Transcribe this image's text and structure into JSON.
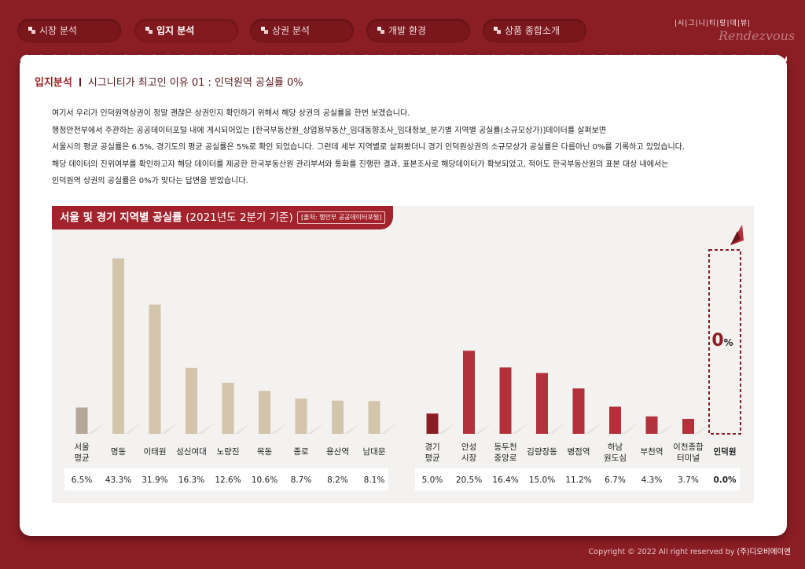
{
  "nav": {
    "tabs": [
      {
        "label": "시장 분석",
        "active": false
      },
      {
        "label": "입지 분석",
        "active": true
      },
      {
        "label": "상권 분석",
        "active": false
      },
      {
        "label": "개발 환경",
        "active": false
      },
      {
        "label": "상품 종합소개",
        "active": false
      }
    ]
  },
  "brand": {
    "name": "|시|그|니|티|랑|데|뷰|",
    "script": "Rendezvous"
  },
  "heading": {
    "section": "입지분석",
    "title": "시그니티가 최고인 이유 01 : 인덕원역 공실률 0%"
  },
  "body": {
    "lines": [
      "여기서 우리가 인덕원역상권이 정말 괜찮은 상권인지 확인하기 위해서 해당 상권의 공실률을 한번 보겠습니다.",
      "행정안전부에서 주관하는 공공데이터포털 내에 게시되어있는 [한국부동산원_상업용부동산_임대동향조사_임대정보_분기별 지역별 공실률(소규모상가)]데이터를 살펴보면",
      "서울시의 평균 공실률은 6.5%, 경기도의 평균 공실률은 5%로 확인 되었습니다. 그런데 세부 지역별로 살펴봤더니 경기 인덕원상권의 소규모상가 공실률은 다름아닌 0%를 기록하고 있었습니다.",
      "해당 데이터의 진위여부를 확인하고자 해당 데이터를 제공한 한국부동산원 관리부서와 통화를 진행한 결과, 표본조사로 해당데이터가 확보되었고, 적어도 한국부동산원의 표본 대상 내에서는",
      "인덕원역 상권의 공실률은 0%가 맞다는 답변을 받았습니다."
    ]
  },
  "chart_data": {
    "type": "bar",
    "title": "서울 및 경기 지역별 공실률",
    "subtitle": "(2021년도 2분기 기준)",
    "source": "[출처: 행안부 공공데이터포털]",
    "ylim": [
      0,
      45
    ],
    "highlight_label": "0%",
    "groups": [
      {
        "name": "서울",
        "categories": [
          "서울 평균",
          "명동",
          "이태원",
          "성신여대",
          "노량진",
          "목동",
          "종로",
          "용산역",
          "남대문"
        ],
        "category_lines": [
          [
            "서울",
            "평균"
          ],
          [
            "명동"
          ],
          [
            "이태원"
          ],
          [
            "성신여대"
          ],
          [
            "노량진"
          ],
          [
            "목동"
          ],
          [
            "종로"
          ],
          [
            "용산역"
          ],
          [
            "남대문"
          ]
        ],
        "values": [
          6.5,
          43.3,
          31.9,
          16.3,
          12.6,
          10.6,
          8.7,
          8.2,
          8.1
        ],
        "value_labels": [
          "6.5%",
          "43.3%",
          "31.9%",
          "16.3%",
          "12.6%",
          "10.6%",
          "8.7%",
          "8.2%",
          "8.1%"
        ],
        "colors": [
          "#b3a797",
          "#d3c4ac",
          "#d3c4ac",
          "#d3c4ac",
          "#d3c4ac",
          "#d3c4ac",
          "#d3c4ac",
          "#d3c4ac",
          "#d3c4ac"
        ]
      },
      {
        "name": "경기",
        "categories": [
          "경기 평균",
          "안성 시장",
          "동두천 중앙로",
          "김량장동",
          "병점역",
          "하남 원도심",
          "부천역",
          "이천종합 터미널",
          "인덕원"
        ],
        "category_lines": [
          [
            "경기",
            "평균"
          ],
          [
            "안성",
            "시장"
          ],
          [
            "동두천",
            "중앙로"
          ],
          [
            "김량장동"
          ],
          [
            "병점역"
          ],
          [
            "하남",
            "원도심"
          ],
          [
            "부천역"
          ],
          [
            "이천종합",
            "터미널"
          ],
          [
            "인덕원"
          ]
        ],
        "values": [
          5.0,
          20.5,
          16.4,
          15.0,
          11.2,
          6.7,
          4.3,
          3.7,
          0.0
        ],
        "value_labels": [
          "5.0%",
          "20.5%",
          "16.4%",
          "15.0%",
          "11.2%",
          "6.7%",
          "4.3%",
          "3.7%",
          "0.0%"
        ],
        "colors": [
          "#8b1d24",
          "#b2313b",
          "#b2313b",
          "#b2313b",
          "#b2313b",
          "#b2313b",
          "#b2313b",
          "#b2313b",
          "#b2313b"
        ]
      }
    ]
  },
  "footer": {
    "copyright": "Copyright © 2022 All right reserved by",
    "company": "(주)디오비에이엔"
  }
}
